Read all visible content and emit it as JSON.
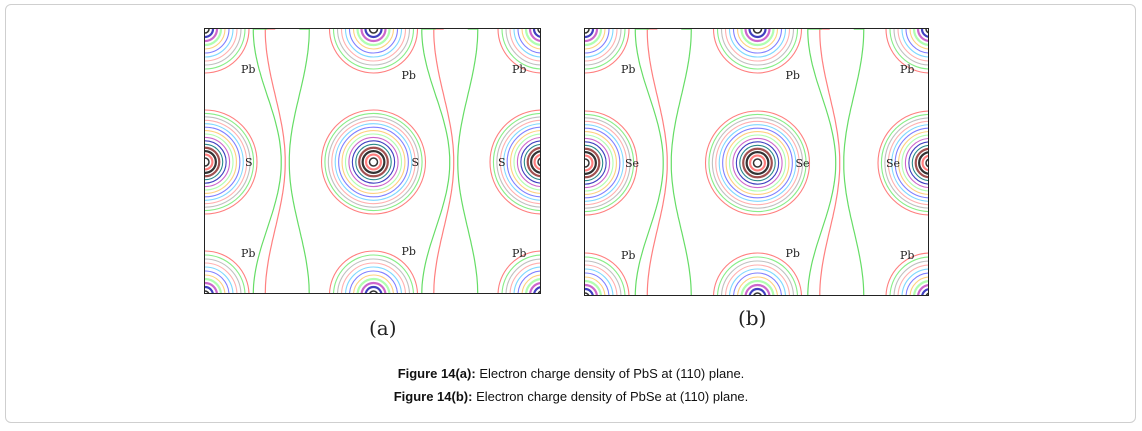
{
  "figure": {
    "panel_a": {
      "label": "(a)",
      "atoms": {
        "cation": "Pb",
        "anion": "S"
      }
    },
    "panel_b": {
      "label": "(b)",
      "atoms": {
        "cation": "Pb",
        "anion": "Se"
      }
    },
    "captions": [
      {
        "bold": "Figure 14(a):",
        "text": " Electron charge density of PbS at (110) plane."
      },
      {
        "bold": "Figure 14(b):",
        "text": " Electron charge density of PbSe at (110) plane."
      }
    ],
    "contour_colors": [
      "#ff7f7f",
      "#88ee88",
      "#c0c0c0",
      "#ffb0b0",
      "#7fd8ff",
      "#8080ff",
      "#ffd080",
      "#b0ffb0",
      "#cc66cc",
      "#4040c0",
      "#2a8a8a",
      "#a05050",
      "#333333"
    ]
  }
}
